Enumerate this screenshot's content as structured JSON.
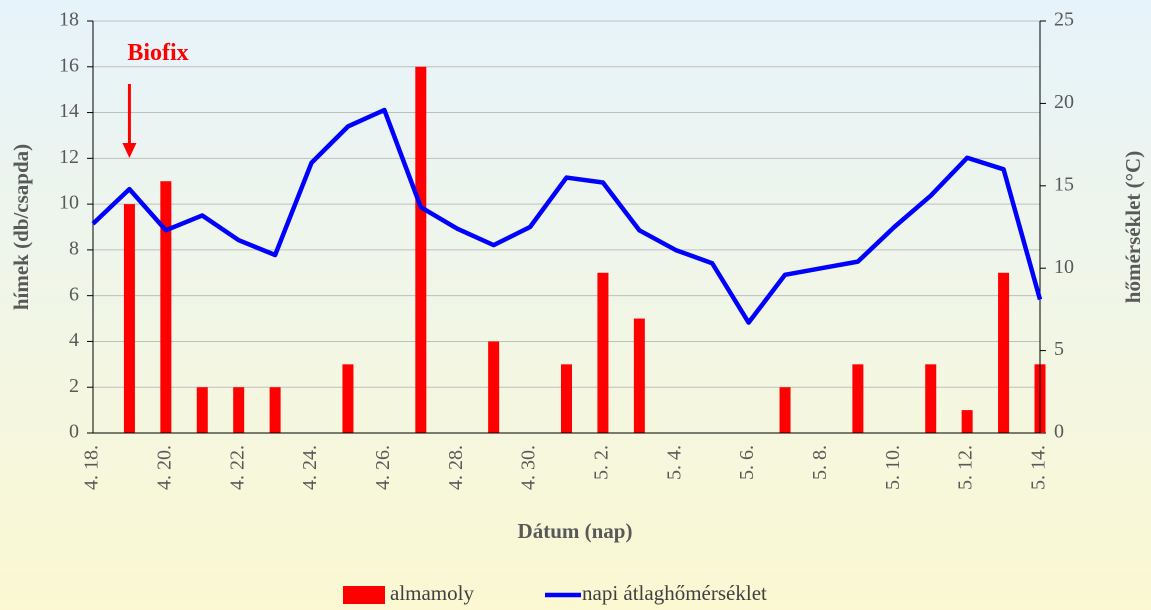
{
  "chart_data": {
    "type": "bar-line",
    "annotation": "Biofix",
    "xlabel": "Dátum (nap)",
    "ylabel": "hímek (db/csapda)",
    "y2label": "hőmérséklet (°C)",
    "categories": [
      "4. 18.",
      null,
      "4. 20.",
      null,
      "4. 22.",
      null,
      "4. 24.",
      null,
      "4. 26.",
      null,
      "4. 28.",
      null,
      "4. 30.",
      null,
      "5. 2.",
      null,
      "5. 4.",
      null,
      "5. 6.",
      null,
      "5. 8.",
      null,
      "5. 10.",
      null,
      "5. 12.",
      null,
      "5. 14."
    ],
    "series": [
      {
        "name": "almamoly",
        "type": "bar",
        "color": "#ff0000",
        "axis": "y",
        "values": [
          0,
          10,
          11,
          2,
          2,
          2,
          0,
          3,
          0,
          16,
          0,
          4,
          0,
          3,
          7,
          5,
          0,
          0,
          0,
          2,
          0,
          3,
          0,
          3,
          1,
          7,
          3
        ]
      },
      {
        "name": "napi átlaghőmérséklet",
        "type": "line",
        "color": "#0000ff",
        "axis": "y2",
        "values": [
          12.7,
          14.8,
          12.3,
          13.2,
          11.7,
          10.8,
          16.4,
          18.6,
          19.6,
          13.7,
          12.4,
          11.4,
          12.5,
          15.5,
          15.2,
          12.3,
          11.1,
          10.3,
          6.7,
          9.6,
          10.0,
          10.4,
          12.5,
          14.4,
          16.7,
          16.0,
          8.1
        ]
      }
    ],
    "ylim": [
      0,
      18
    ],
    "yticks": [
      0,
      2,
      4,
      6,
      8,
      10,
      12,
      14,
      16,
      18
    ],
    "y2lim": [
      0,
      25
    ],
    "y2ticks": [
      0,
      5,
      10,
      15,
      20,
      25
    ],
    "grid": true
  }
}
